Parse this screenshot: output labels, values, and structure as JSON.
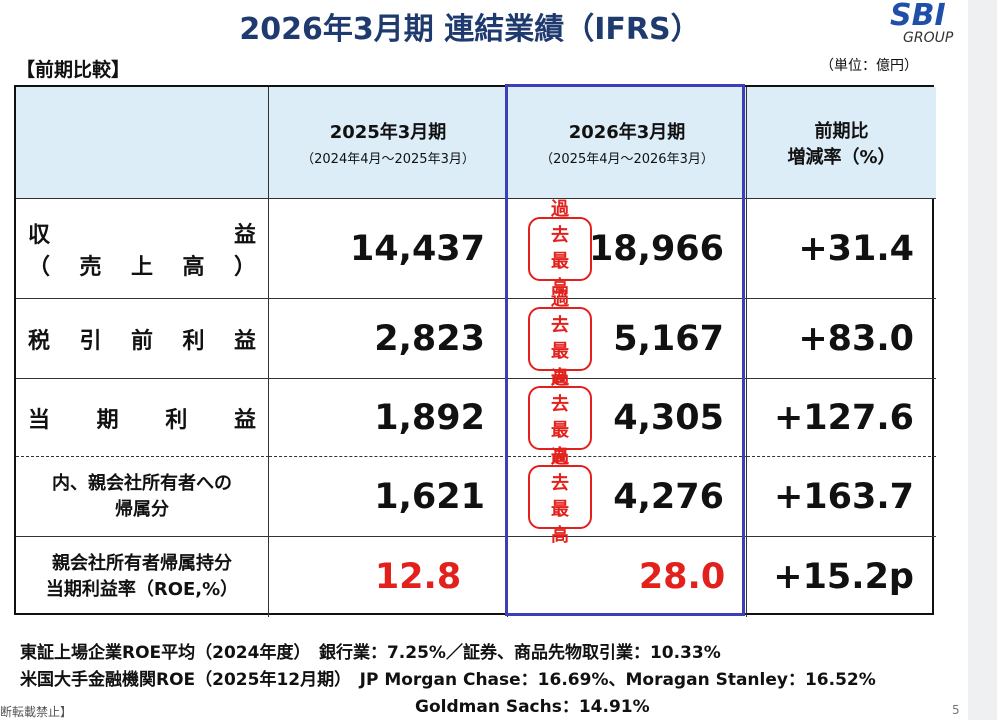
{
  "header": {
    "title": "2026年3月期 連結業績（IFRS）",
    "logo": "SBI",
    "logo_sub": "GROUP",
    "section": "【前期比較】",
    "unit": "（単位：億円）"
  },
  "table": {
    "columns": [
      {
        "title": "2025年3月期",
        "sub": "（2024年4月～2025年3月）"
      },
      {
        "title": "2026年3月期",
        "sub": "（2025年4月～2026年3月）"
      },
      {
        "title": "前期比",
        "sub": "増減率（%）"
      }
    ],
    "rows": [
      {
        "label": [
          "収益",
          "（売上高）"
        ],
        "prev": "14,437",
        "badge": "過去最高",
        "cur": "18,966",
        "change": "+31.4"
      },
      {
        "label": [
          "税引前利益"
        ],
        "prev": "2,823",
        "badge": "過去最高",
        "cur": "5,167",
        "change": "+83.0"
      },
      {
        "label": [
          "当期利益"
        ],
        "prev": "1,892",
        "badge": "過去最高",
        "cur": "4,305",
        "change": "+127.6"
      },
      {
        "label": [
          "内、親会社所有者への",
          "帰属分"
        ],
        "prev": "1,621",
        "badge": "過去最高",
        "cur": "4,276",
        "change": "+163.7"
      },
      {
        "label": [
          "親会社所有者帰属持分",
          "当期利益率（ROE,%）"
        ],
        "prev": "12.8",
        "cur": "28.0",
        "change": "+15.2p"
      }
    ]
  },
  "notes": [
    "東証上場企業ROE平均（2024年度）　銀行業：7.25%／証券、商品先物取引業：10.33%",
    "米国大手金融機関ROE（2025年12月期）　JP Morgan Chase：16.69%、Moragan Stanley：16.52%",
    "Goldman Sachs：14.91%"
  ],
  "footer": "断転載禁止】",
  "page": "5"
}
